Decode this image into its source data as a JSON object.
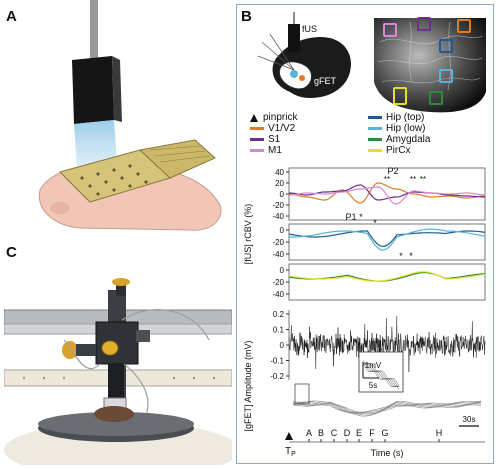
{
  "panels": {
    "a": "A",
    "b": "B",
    "c": "C"
  },
  "schematic": {
    "fus": "fUS",
    "gfet": "gFET"
  },
  "legend": [
    {
      "marker": "triangle",
      "label": "pinprick",
      "color": "#111111"
    },
    {
      "label": "V1/V2",
      "color": "#e07b28"
    },
    {
      "label": "S1",
      "color": "#6a2f86"
    },
    {
      "label": "M1",
      "color": "#d887d6"
    },
    {
      "label": "Hip (top)",
      "color": "#1f5a93"
    },
    {
      "label": "Hip (low)",
      "color": "#59b3d9"
    },
    {
      "label": "Amygdala",
      "color": "#2e8a3e"
    },
    {
      "label": "PirCx",
      "color": "#e6df2a"
    }
  ],
  "roi_colors": [
    "#d887d6",
    "#6a2f86",
    "#e07b28",
    "#1f5a93",
    "#59b3d9",
    "#e6df2a",
    "#2e8a3e"
  ],
  "axes": {
    "cbv_label": "[fUS] rCBV (%)",
    "cbv_ticks": [
      "40",
      "20",
      "0",
      "-20",
      "-40"
    ],
    "cbv2_ticks": [
      "0",
      "-20",
      "-40"
    ],
    "cbv3_ticks": [
      "0",
      "-20",
      "-40"
    ],
    "gfet_label": "[gFET] Amplitude (mV)",
    "gfet_ticks": [
      "0.2",
      "0.1",
      "0",
      "-0.1",
      "-0.2"
    ],
    "time_label": "Time (s)",
    "time_letters": [
      "A",
      "B",
      "C",
      "D",
      "E",
      "F",
      "G",
      "H"
    ],
    "tp": "T",
    "tp_sub": "P"
  },
  "annotations": {
    "p1": "P1",
    "p2": "P2",
    "star": "*",
    "double_star": "**",
    "inset_scale_v": "1mV",
    "inset_scale_t": "5s",
    "scale_30s": "30s"
  }
}
